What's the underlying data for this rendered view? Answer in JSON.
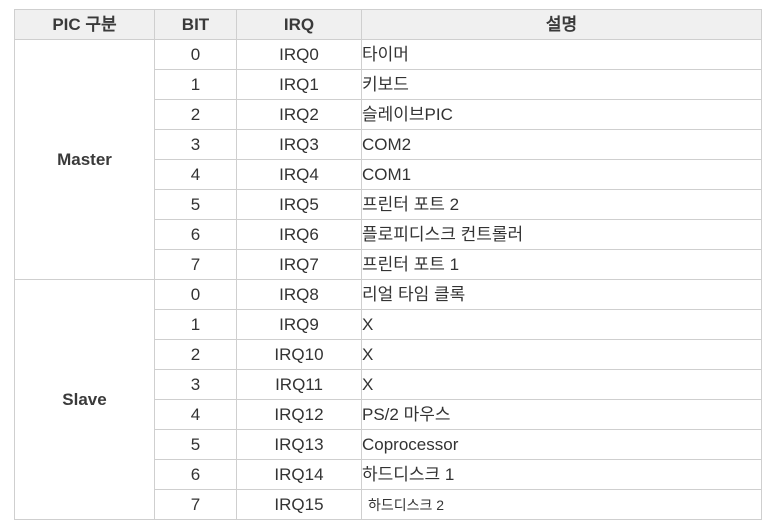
{
  "headers": {
    "pic_group": "PIC 구분",
    "bit": "BIT",
    "irq": "IRQ",
    "description": "설명"
  },
  "groups": [
    {
      "name": "Master",
      "rows": [
        {
          "bit": "0",
          "irq": "IRQ0",
          "desc": "타이머"
        },
        {
          "bit": "1",
          "irq": "IRQ1",
          "desc": "키보드"
        },
        {
          "bit": "2",
          "irq": "IRQ2",
          "desc": "슬레이브PIC"
        },
        {
          "bit": "3",
          "irq": "IRQ3",
          "desc": "COM2"
        },
        {
          "bit": "4",
          "irq": "IRQ4",
          "desc": "COM1"
        },
        {
          "bit": "5",
          "irq": "IRQ5",
          "desc": "프린터 포트 2"
        },
        {
          "bit": "6",
          "irq": "IRQ6",
          "desc": "플로피디스크 컨트롤러"
        },
        {
          "bit": "7",
          "irq": "IRQ7",
          "desc": "프린터 포트 1"
        }
      ]
    },
    {
      "name": "Slave",
      "rows": [
        {
          "bit": "0",
          "irq": "IRQ8",
          "desc": "리얼 타임 클록"
        },
        {
          "bit": "1",
          "irq": "IRQ9",
          "desc": "X"
        },
        {
          "bit": "2",
          "irq": "IRQ10",
          "desc": "X"
        },
        {
          "bit": "3",
          "irq": "IRQ11",
          "desc": "X"
        },
        {
          "bit": "4",
          "irq": "IRQ12",
          "desc": "PS/2 마우스"
        },
        {
          "bit": "5",
          "irq": "IRQ13",
          "desc": "Coprocessor"
        },
        {
          "bit": "6",
          "irq": "IRQ14",
          "desc": "하드디스크 1"
        },
        {
          "bit": "7",
          "irq": "IRQ15",
          "desc": "하드디스크 2"
        }
      ]
    }
  ]
}
